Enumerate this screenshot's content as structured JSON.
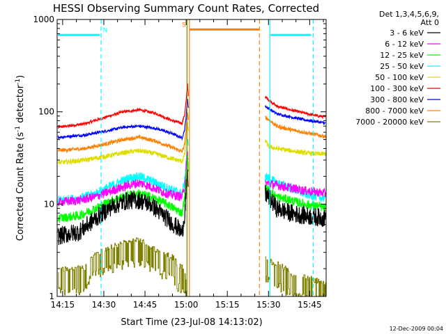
{
  "chart_data": {
    "type": "line",
    "title": "HESSI Observing Summary Count Rates, Corrected",
    "xlabel": "Start Time (23-Jul-08 14:13:02)",
    "ylabel": "Corrected Count Rate (s⁻¹ detector⁻¹)",
    "ylabel_parts": [
      "Corrected Count Rate (s",
      "-1",
      " detector",
      "-1",
      ")"
    ],
    "x_unit": "minutes after 14:13:02 UT",
    "xlim": [
      0,
      98
    ],
    "ylim": [
      1,
      1000
    ],
    "y_scale": "log",
    "x_tick_labels": [
      {
        "label": "14:15",
        "x": 2
      },
      {
        "label": "14:30",
        "x": 17
      },
      {
        "label": "14:45",
        "x": 32
      },
      {
        "label": "15:00",
        "x": 47
      },
      {
        "label": "15:15",
        "x": 62
      },
      {
        "label": "15:30",
        "x": 77
      },
      {
        "label": "15:45",
        "x": 92
      }
    ],
    "y_tick_labels": [
      {
        "label": "1",
        "y": 1
      },
      {
        "label": "10",
        "y": 10
      },
      {
        "label": "100",
        "y": 100
      },
      {
        "label": "1000",
        "y": 1000
      }
    ],
    "legend": {
      "position": "right",
      "header": [
        "Det 1,3,4,5,6,9,",
        "Att 0"
      ],
      "entries": [
        {
          "label": "3 - 6 keV",
          "color": "#000000"
        },
        {
          "label": "6 - 12 keV",
          "color": "#ff00ff"
        },
        {
          "label": "12 - 25 keV",
          "color": "#00ff00"
        },
        {
          "label": "25 - 50 keV",
          "color": "#00ffff"
        },
        {
          "label": "50 - 100 keV",
          "color": "#dddd00"
        },
        {
          "label": "100 - 300 keV",
          "color": "#ff0000"
        },
        {
          "label": "300 - 800 keV",
          "color": "#0000ff"
        },
        {
          "label": "800 - 7000 keV",
          "color": "#ff8000"
        },
        {
          "label": "7000 - 20000 keV",
          "color": "#808000"
        }
      ]
    },
    "series": [
      {
        "name": "100 - 300 keV",
        "color": "#ff0000",
        "noise": 0.015,
        "segments": [
          [
            [
              0.3,
              68
            ],
            [
              10,
              74
            ],
            [
              18,
              88
            ],
            [
              24,
              100
            ],
            [
              30,
              105
            ],
            [
              36,
              96
            ],
            [
              42,
              80
            ],
            [
              45.5,
              75
            ],
            [
              46.5,
              95
            ],
            [
              47,
              130
            ],
            [
              47.5,
              200
            ],
            [
              47.8,
              150
            ]
          ],
          [
            [
              75.8,
              145
            ],
            [
              80,
              115
            ],
            [
              85,
              105
            ],
            [
              90,
              97
            ],
            [
              95,
              90
            ],
            [
              97.8,
              88
            ]
          ]
        ]
      },
      {
        "name": "300 - 800 keV",
        "color": "#0000ff",
        "noise": 0.015,
        "segments": [
          [
            [
              0.3,
              53
            ],
            [
              10,
              56
            ],
            [
              18,
              62
            ],
            [
              24,
              68
            ],
            [
              30,
              70
            ],
            [
              36,
              66
            ],
            [
              42,
              58
            ],
            [
              45.5,
              52
            ],
            [
              46.5,
              65
            ],
            [
              47,
              90
            ],
            [
              47.5,
              140
            ],
            [
              47.8,
              110
            ]
          ],
          [
            [
              75.8,
              115
            ],
            [
              80,
              95
            ],
            [
              85,
              88
            ],
            [
              90,
              82
            ],
            [
              95,
              78
            ],
            [
              97.8,
              75
            ]
          ]
        ]
      },
      {
        "name": "800 - 7000 keV",
        "color": "#ff8000",
        "noise": 0.02,
        "segments": [
          [
            [
              0.3,
              38
            ],
            [
              10,
              40
            ],
            [
              18,
              45
            ],
            [
              24,
              50
            ],
            [
              30,
              53
            ],
            [
              36,
              48
            ],
            [
              42,
              41
            ],
            [
              45.5,
              37
            ],
            [
              46.5,
              45
            ],
            [
              47,
              65
            ],
            [
              47.5,
              100
            ],
            [
              47.8,
              80
            ]
          ],
          [
            [
              75.8,
              88
            ],
            [
              80,
              70
            ],
            [
              85,
              64
            ],
            [
              90,
              60
            ],
            [
              95,
              56
            ],
            [
              97.8,
              54
            ]
          ]
        ]
      },
      {
        "name": "50 - 100 keV",
        "color": "#dddd00",
        "noise": 0.025,
        "segments": [
          [
            [
              0.3,
              28
            ],
            [
              10,
              30
            ],
            [
              18,
              33
            ],
            [
              24,
              36
            ],
            [
              30,
              38
            ],
            [
              36,
              35
            ],
            [
              42,
              31
            ],
            [
              45.5,
              29
            ],
            [
              46.5,
              35
            ],
            [
              47,
              50
            ],
            [
              47.5,
              75
            ],
            [
              47.8,
              60
            ]
          ],
          [
            [
              75.8,
              50
            ],
            [
              77,
              42
            ],
            [
              80,
              40
            ],
            [
              85,
              38
            ],
            [
              90,
              36
            ],
            [
              95,
              35
            ],
            [
              97.8,
              35
            ]
          ]
        ]
      },
      {
        "name": "25 - 50 keV",
        "color": "#00ffff",
        "noise": 0.05,
        "segments": [
          [
            [
              0.3,
              11
            ],
            [
              8,
              11.5
            ],
            [
              14,
              13
            ],
            [
              20,
              16
            ],
            [
              26,
              19
            ],
            [
              30,
              20
            ],
            [
              34,
              18
            ],
            [
              40,
              15
            ],
            [
              45.5,
              13
            ],
            [
              46.5,
              18
            ],
            [
              47,
              30
            ],
            [
              47.5,
              50
            ],
            [
              47.8,
              40
            ]
          ],
          [
            [
              75.8,
              20
            ],
            [
              80,
              17
            ],
            [
              85,
              15
            ],
            [
              90,
              13
            ],
            [
              95,
              12
            ],
            [
              97.8,
              11.5
            ]
          ]
        ]
      },
      {
        "name": "6 - 12 keV",
        "color": "#ff00ff",
        "noise": 0.05,
        "segments": [
          [
            [
              0.3,
              10.5
            ],
            [
              8,
              11
            ],
            [
              14,
              12
            ],
            [
              20,
              14
            ],
            [
              26,
              16
            ],
            [
              30,
              17
            ],
            [
              34,
              15.5
            ],
            [
              40,
              13
            ],
            [
              45.5,
              12
            ],
            [
              46.5,
              16
            ],
            [
              47,
              25
            ],
            [
              47.5,
              35
            ],
            [
              47.8,
              30
            ]
          ],
          [
            [
              75.8,
              17
            ],
            [
              80,
              16
            ],
            [
              85,
              15
            ],
            [
              90,
              14
            ],
            [
              95,
              13.5
            ],
            [
              97.8,
              13
            ]
          ]
        ]
      },
      {
        "name": "12 - 25 keV",
        "color": "#00ff00",
        "noise": 0.05,
        "segments": [
          [
            [
              0.3,
              7
            ],
            [
              8,
              7.5
            ],
            [
              14,
              9
            ],
            [
              20,
              11
            ],
            [
              26,
              12.5
            ],
            [
              30,
              13
            ],
            [
              34,
              12
            ],
            [
              40,
              10
            ],
            [
              45.5,
              8
            ],
            [
              46.5,
              12
            ],
            [
              47,
              20
            ],
            [
              47.5,
              30
            ],
            [
              47.8,
              25
            ]
          ],
          [
            [
              75.8,
              15
            ],
            [
              80,
              12
            ],
            [
              85,
              11
            ],
            [
              90,
              10
            ],
            [
              95,
              9.5
            ],
            [
              97.8,
              9
            ]
          ]
        ]
      },
      {
        "name": "3 - 6 keV",
        "color": "#000000",
        "noise": 0.1,
        "segments": [
          [
            [
              0.3,
              4.5
            ],
            [
              8,
              5
            ],
            [
              14,
              7
            ],
            [
              20,
              9.5
            ],
            [
              26,
              11
            ],
            [
              30,
              11
            ],
            [
              34,
              10
            ],
            [
              40,
              7
            ],
            [
              44,
              5.5
            ],
            [
              45.5,
              4.8
            ],
            [
              46.5,
              8
            ],
            [
              47,
              14
            ],
            [
              47.5,
              20
            ],
            [
              47.8,
              16
            ]
          ],
          [
            [
              75.8,
              13
            ],
            [
              78,
              11
            ],
            [
              80,
              9
            ],
            [
              85,
              8
            ],
            [
              90,
              7.5
            ],
            [
              95,
              7.2
            ],
            [
              97.8,
              7
            ]
          ]
        ]
      },
      {
        "name": "7000 - 20000 keV",
        "color": "#808000",
        "noise": 0.5,
        "step": true,
        "segments": [
          [
            [
              0.3,
              1.8
            ],
            [
              10,
              1.9
            ],
            [
              12,
              2.6
            ],
            [
              18,
              3
            ],
            [
              24,
              3.6
            ],
            [
              30,
              3.8
            ],
            [
              36,
              3
            ],
            [
              42,
              2.5
            ],
            [
              44,
              2
            ],
            [
              46,
              1.9
            ],
            [
              47,
              1.5
            ]
          ],
          [
            [
              75.8,
              2.5
            ],
            [
              78,
              2.2
            ],
            [
              82,
              2
            ],
            [
              86,
              1.6
            ],
            [
              90,
              1.5
            ],
            [
              94,
              1.4
            ],
            [
              97.8,
              1.3
            ]
          ]
        ]
      }
    ],
    "attenuator_bars": [
      {
        "label": "N",
        "color": "#00ffff",
        "x0": 0.3,
        "x1": 15.5,
        "y": 680
      },
      {
        "label": "N",
        "color": "#00ffff",
        "x0": 77.8,
        "x1": 92.5,
        "y": 680
      },
      {
        "label": "S",
        "color": "#ff8000",
        "x0": 48.2,
        "x1": 73.5,
        "y": 780
      }
    ],
    "interval_lines": [
      {
        "x": 16,
        "color": "#00ffff",
        "style": "dashed"
      },
      {
        "x": 47.3,
        "color": "#808000",
        "style": "solid"
      },
      {
        "x": 48.2,
        "color": "#ff8000",
        "style": "solid"
      },
      {
        "x": 73.7,
        "color": "#ff8000",
        "style": "dashed"
      },
      {
        "x": 77.5,
        "color": "#00ffff",
        "style": "solid"
      },
      {
        "x": 93.3,
        "color": "#00ffff",
        "style": "dashed"
      }
    ],
    "grid": false,
    "footer_date": "12-Dec-2009 00:04"
  }
}
